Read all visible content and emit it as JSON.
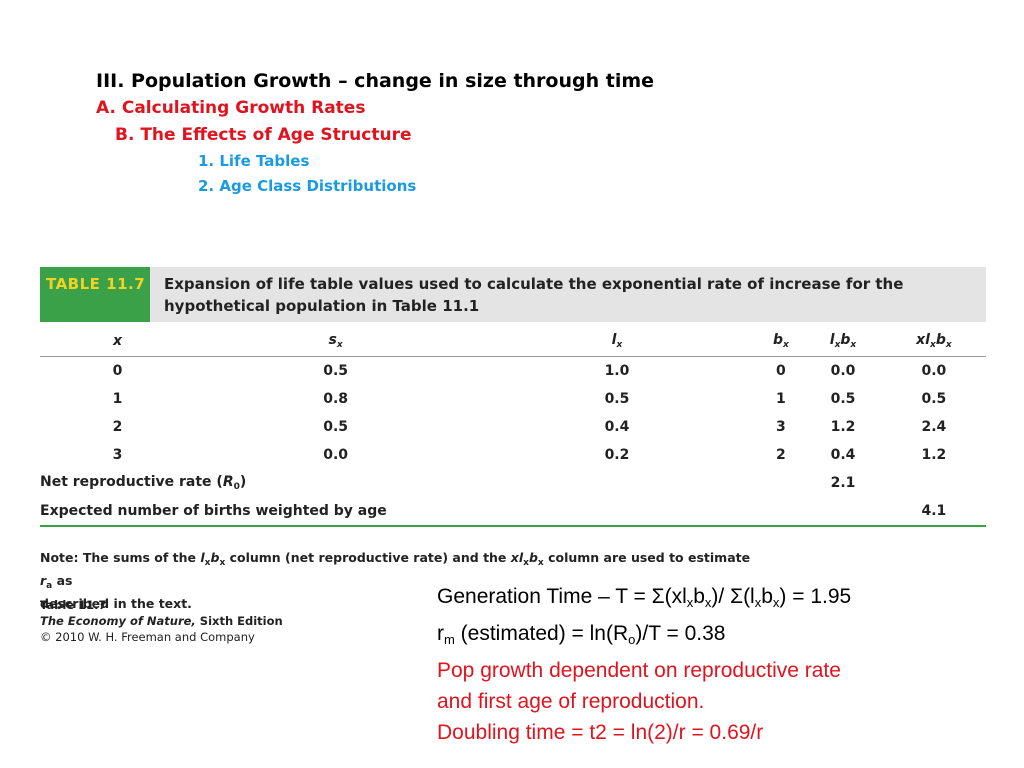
{
  "outline": {
    "l1": "III. Population Growth – change in size through time",
    "l2": "A. Calculating Growth Rates",
    "l3": "B. The Effects of Age Structure",
    "l4a": "1. Life Tables",
    "l4b": "2. Age Class Distributions"
  },
  "table": {
    "tag": "TABLE 11.7",
    "caption_line1": "Expansion of life table values used to calculate the exponential rate of increase for the",
    "caption_line2": "hypothetical population in Table 11.1",
    "headers": [
      "x",
      "s",
      "l",
      "b",
      "l",
      "xl"
    ],
    "header_subs": {
      "s": "x",
      "l": "x",
      "b": "x",
      "lb_l_sub": "x",
      "lb_b": "b",
      "lb_b_sub": "x",
      "xlb_l_sub": "x",
      "xlb_b": "b",
      "xlb_b_sub": "x"
    },
    "rows": [
      [
        "0",
        "0.5",
        "1.0",
        "0",
        "0.0",
        "0.0"
      ],
      [
        "1",
        "0.8",
        "0.5",
        "1",
        "0.5",
        "0.5"
      ],
      [
        "2",
        "0.5",
        "0.4",
        "3",
        "1.2",
        "2.4"
      ],
      [
        "3",
        "0.0",
        "0.2",
        "2",
        "0.4",
        "1.2"
      ]
    ],
    "net_label": "Net reproductive rate (",
    "net_R": "R",
    "net_sub": "0",
    "net_close": ")",
    "net_value": "2.1",
    "births_label": "Expected number of births weighted by age",
    "births_value": "4.1"
  },
  "note": {
    "label": "Note:",
    "t1": " The sums of the ",
    "t2": " column (net reproductive rate) and the ",
    "t3": " column are used to estimate ",
    "t4": " as",
    "line2": "described in the text.",
    "r": "r",
    "r_sub": "a"
  },
  "credit": {
    "line1": "Table 11.7",
    "line2": "The Economy of Nature,",
    "line2b": " Sixth Edition",
    "line3": "© 2010 W. H. Freeman and Company"
  },
  "calc": {
    "gen_a": "Generation Time – T = Σ(xl",
    "gen_b": "b",
    "gen_c": ")/ Σ(l",
    "gen_d": "b",
    "gen_e": ") = 1.95",
    "sub_x": "x",
    "rm_a": "r",
    "rm_sub": "m",
    "rm_b": " (estimated) = ln(R",
    "rm_sub2": "o",
    "rm_c": ")/T = 0.38",
    "pop1": "Pop growth dependent on reproductive rate",
    "pop2": "and first age of reproduction.",
    "dbl": "Doubling time = t2 = ln(2)/r = 0.69/r"
  },
  "colors": {
    "outline_red": "#e0141e",
    "outline_blue": "#1a9be0",
    "table_green": "#3aa148",
    "table_yellow": "#f2d323"
  }
}
